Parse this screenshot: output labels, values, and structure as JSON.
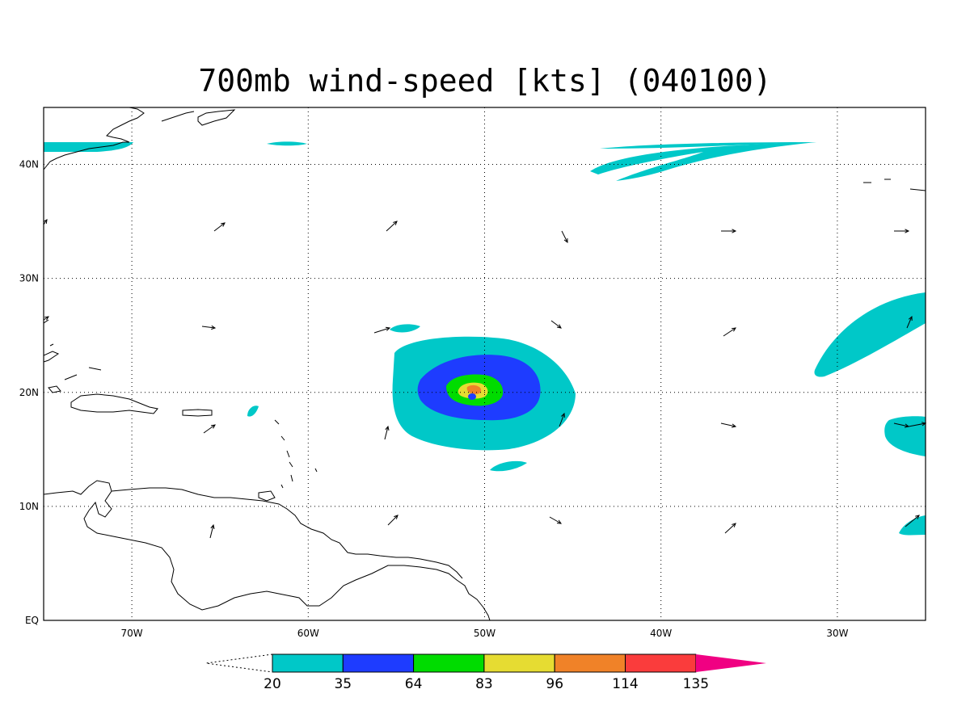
{
  "title": "700mb wind-speed [kts] (040100)",
  "map": {
    "lon_range": [
      -75,
      -25
    ],
    "lat_range": [
      0,
      45
    ],
    "lon_ticks": [
      {
        "value": -70,
        "label": "70W"
      },
      {
        "value": -60,
        "label": "60W"
      },
      {
        "value": -50,
        "label": "50W"
      },
      {
        "value": -40,
        "label": "40W"
      },
      {
        "value": -30,
        "label": "30W"
      }
    ],
    "lat_ticks": [
      {
        "value": 40,
        "label": "40N"
      },
      {
        "value": 30,
        "label": "30N"
      },
      {
        "value": 20,
        "label": "20N"
      },
      {
        "value": 10,
        "label": "10N"
      },
      {
        "value": 0,
        "label": "EQ"
      }
    ],
    "grid": "dotted"
  },
  "colorbar": {
    "levels": [
      "20",
      "35",
      "64",
      "83",
      "96",
      "114",
      "135"
    ],
    "colors": [
      "#00c8c8",
      "#1e3cff",
      "#00dc00",
      "#e6dc32",
      "#f08228",
      "#fa3c3c",
      "#f00082"
    ]
  }
}
